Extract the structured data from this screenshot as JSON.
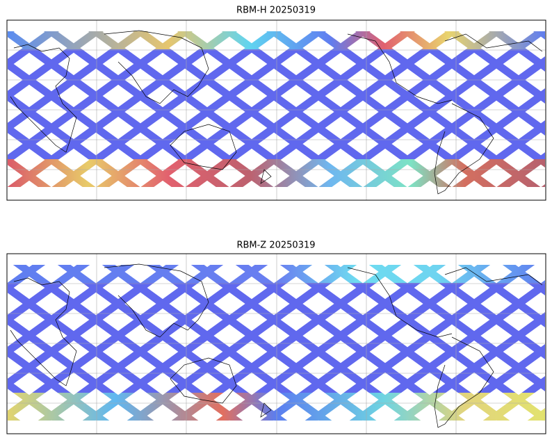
{
  "maps": [
    {
      "title": "RBM-H 20250319"
    },
    {
      "title": "RBM-Z 20250319"
    }
  ]
}
